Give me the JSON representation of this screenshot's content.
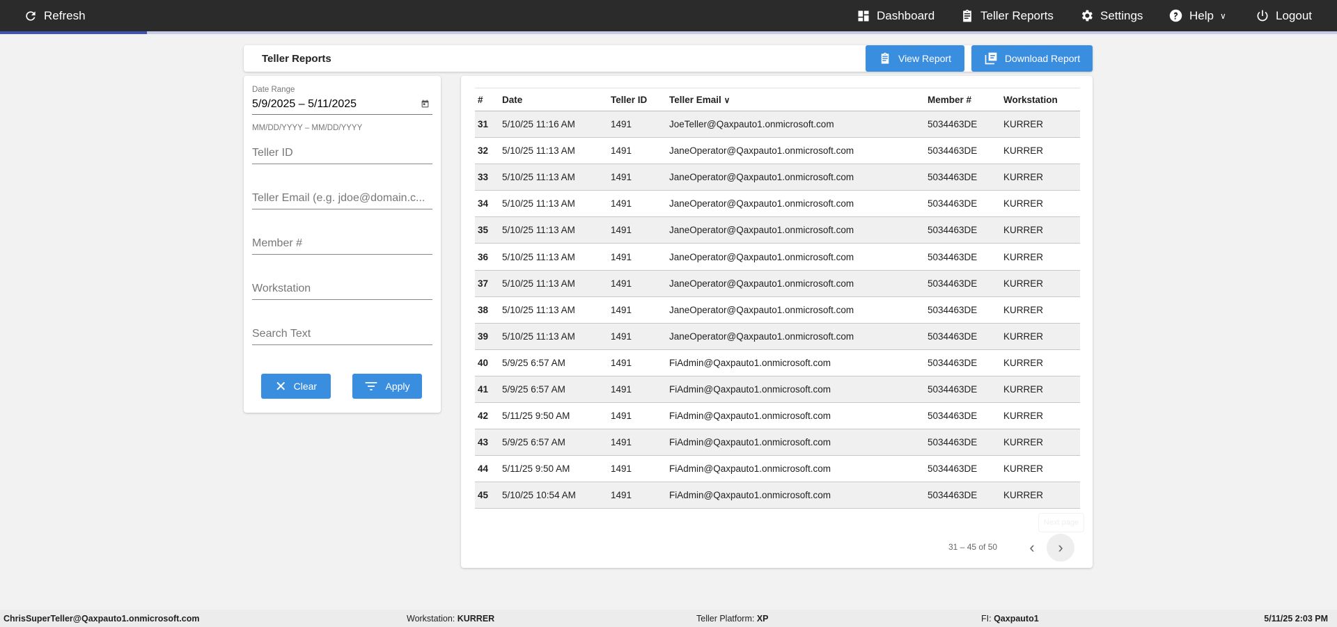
{
  "nav": {
    "refresh": "Refresh",
    "dashboard": "Dashboard",
    "teller_reports": "Teller Reports",
    "settings": "Settings",
    "help": "Help",
    "logout": "Logout"
  },
  "page": {
    "title": "Teller Reports",
    "view_report": "View Report",
    "download_report": "Download Report",
    "progress_percent": 11
  },
  "filters": {
    "date_label": "Date Range",
    "date_value": "5/9/2025 – 5/11/2025",
    "date_hint": "MM/DD/YYYY – MM/DD/YYYY",
    "teller_id": "Teller ID",
    "teller_email": "Teller Email (e.g. jdoe@domain.c...",
    "member": "Member #",
    "workstation": "Workstation",
    "search": "Search Text",
    "clear": "Clear",
    "apply": "Apply"
  },
  "table": {
    "headers": [
      "#",
      "Date",
      "Teller ID",
      "Teller Email",
      "Member #",
      "Workstation"
    ],
    "rows": [
      [
        "31",
        "5/10/25 11:16 AM",
        "1491",
        "JoeTeller@Qaxpauto1.onmicrosoft.com",
        "5034463DE",
        "KURRER"
      ],
      [
        "32",
        "5/10/25 11:13 AM",
        "1491",
        "JaneOperator@Qaxpauto1.onmicrosoft.com",
        "5034463DE",
        "KURRER"
      ],
      [
        "33",
        "5/10/25 11:13 AM",
        "1491",
        "JaneOperator@Qaxpauto1.onmicrosoft.com",
        "5034463DE",
        "KURRER"
      ],
      [
        "34",
        "5/10/25 11:13 AM",
        "1491",
        "JaneOperator@Qaxpauto1.onmicrosoft.com",
        "5034463DE",
        "KURRER"
      ],
      [
        "35",
        "5/10/25 11:13 AM",
        "1491",
        "JaneOperator@Qaxpauto1.onmicrosoft.com",
        "5034463DE",
        "KURRER"
      ],
      [
        "36",
        "5/10/25 11:13 AM",
        "1491",
        "JaneOperator@Qaxpauto1.onmicrosoft.com",
        "5034463DE",
        "KURRER"
      ],
      [
        "37",
        "5/10/25 11:13 AM",
        "1491",
        "JaneOperator@Qaxpauto1.onmicrosoft.com",
        "5034463DE",
        "KURRER"
      ],
      [
        "38",
        "5/10/25 11:13 AM",
        "1491",
        "JaneOperator@Qaxpauto1.onmicrosoft.com",
        "5034463DE",
        "KURRER"
      ],
      [
        "39",
        "5/10/25 11:13 AM",
        "1491",
        "JaneOperator@Qaxpauto1.onmicrosoft.com",
        "5034463DE",
        "KURRER"
      ],
      [
        "40",
        "5/9/25 6:57 AM",
        "1491",
        "FiAdmin@Qaxpauto1.onmicrosoft.com",
        "5034463DE",
        "KURRER"
      ],
      [
        "41",
        "5/9/25 6:57 AM",
        "1491",
        "FiAdmin@Qaxpauto1.onmicrosoft.com",
        "5034463DE",
        "KURRER"
      ],
      [
        "42",
        "5/11/25 9:50 AM",
        "1491",
        "FiAdmin@Qaxpauto1.onmicrosoft.com",
        "5034463DE",
        "KURRER"
      ],
      [
        "43",
        "5/9/25 6:57 AM",
        "1491",
        "FiAdmin@Qaxpauto1.onmicrosoft.com",
        "5034463DE",
        "KURRER"
      ],
      [
        "44",
        "5/11/25 9:50 AM",
        "1491",
        "FiAdmin@Qaxpauto1.onmicrosoft.com",
        "5034463DE",
        "KURRER"
      ],
      [
        "45",
        "5/10/25 10:54 AM",
        "1491",
        "FiAdmin@Qaxpauto1.onmicrosoft.com",
        "5034463DE",
        "KURRER"
      ]
    ]
  },
  "pagination": {
    "range": "31 – 45 of 50",
    "tooltip": "Next page"
  },
  "footer": {
    "user": "ChrisSuperTeller@Qaxpauto1.onmicrosoft.com",
    "workstation_label": "Workstation: ",
    "workstation": "KURRER",
    "platform_label": "Teller Platform: ",
    "platform": "XP",
    "fi_label": "FI: ",
    "fi": "Qaxpauto1",
    "datetime": "5/11/25 2:03 PM"
  }
}
